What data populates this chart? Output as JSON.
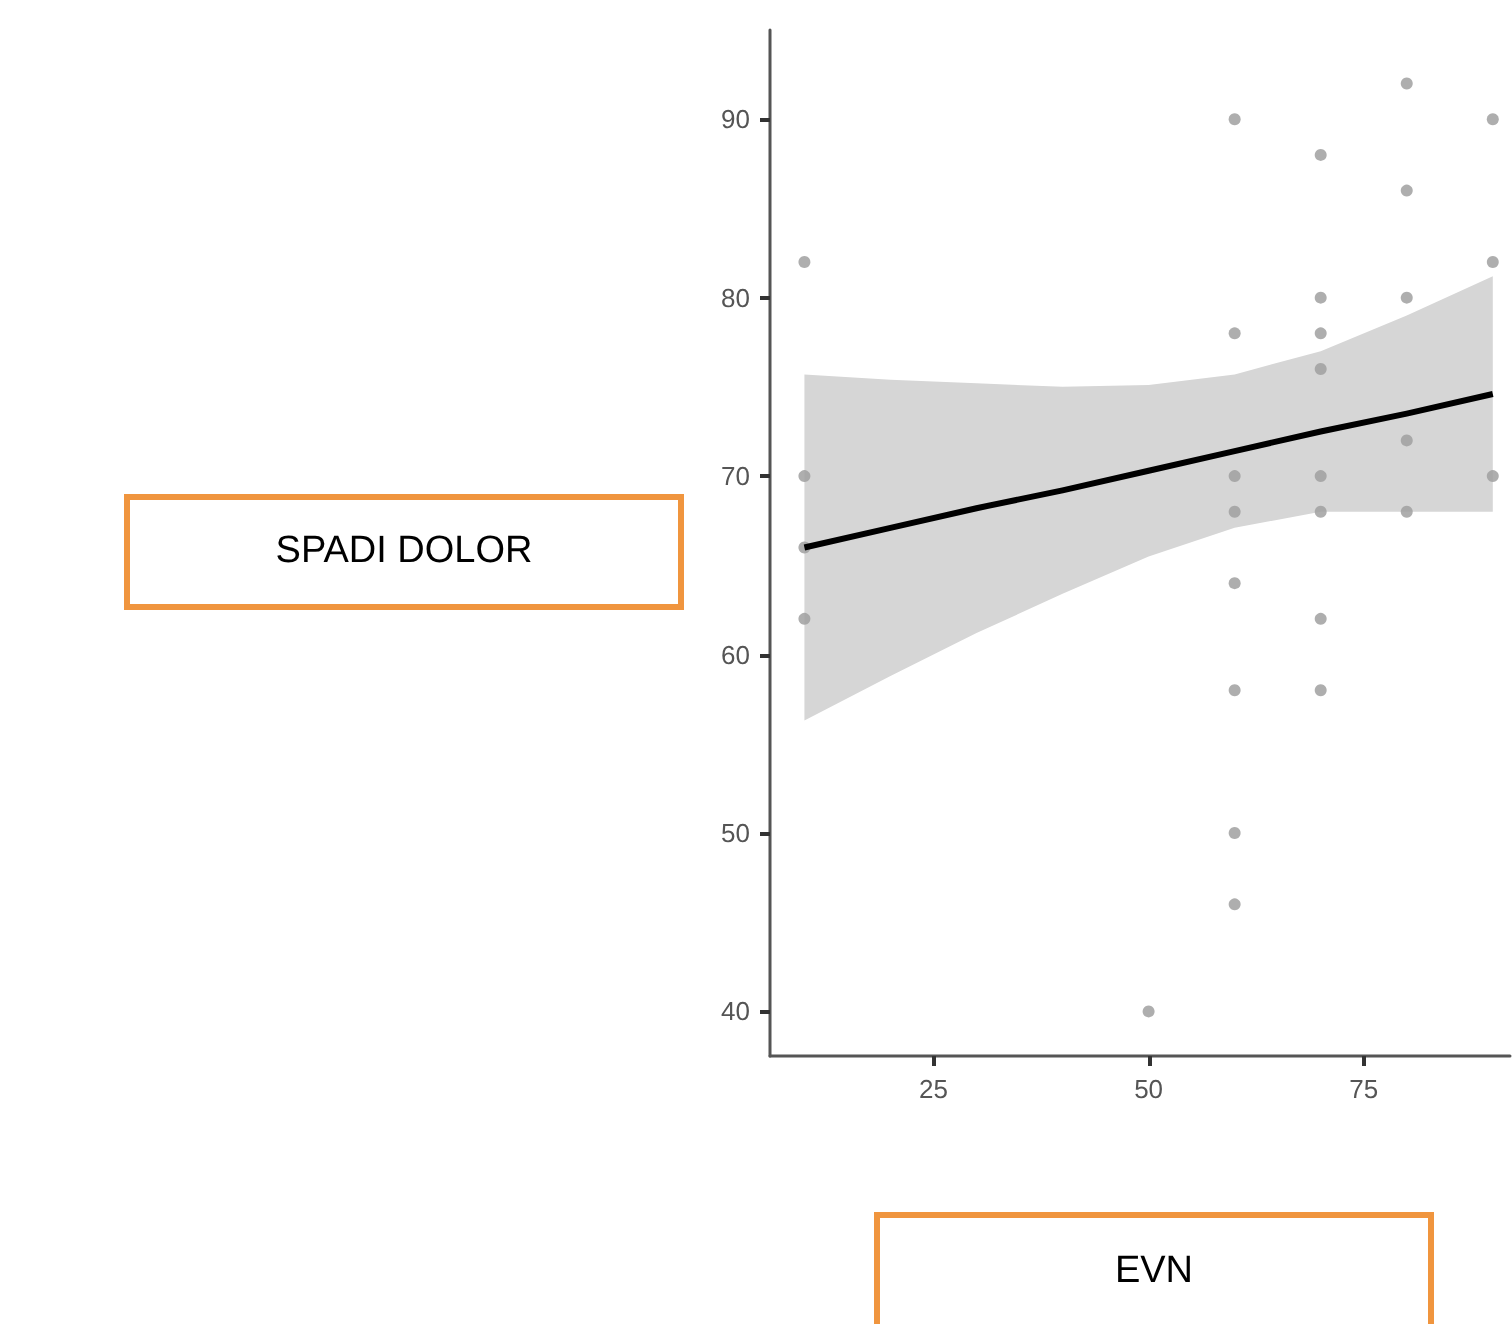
{
  "chart_data": {
    "type": "scatter",
    "xlabel": "EVN",
    "ylabel": "SPADI DOLOR",
    "xlim": [
      6,
      92
    ],
    "xticks": [
      25,
      50,
      75
    ],
    "ylim": [
      37.5,
      95
    ],
    "yticks": [
      40,
      50,
      60,
      70,
      80,
      90
    ],
    "grid": false,
    "marker": "circle",
    "series": [
      {
        "color": "#a0a0a0",
        "x": [
          10,
          10,
          10,
          10,
          50,
          60,
          60,
          60,
          60,
          60,
          60,
          60,
          60,
          70,
          70,
          70,
          70,
          70,
          70,
          70,
          70,
          80,
          80,
          80,
          80,
          80,
          90,
          90,
          90
        ],
        "values": [
          82,
          70,
          66,
          62,
          40,
          90,
          78,
          70,
          68,
          64,
          58,
          50,
          46,
          88,
          80,
          78,
          76,
          70,
          68,
          62,
          58,
          92,
          86,
          80,
          72,
          68,
          90,
          82,
          70
        ]
      },
      {
        "type": "line",
        "marker": "none",
        "color": "#000000",
        "x": [
          10,
          20,
          30,
          40,
          50,
          60,
          70,
          80,
          90
        ],
        "values": [
          66,
          67.1,
          68.2,
          69.2,
          70.3,
          71.4,
          72.5,
          73.5,
          74.6
        ],
        "lower": [
          56.3,
          58.8,
          61.2,
          63.4,
          65.5,
          67.1,
          68,
          68,
          68
        ],
        "upper": [
          75.7,
          75.4,
          75.2,
          75,
          75.1,
          75.7,
          77,
          79,
          81.2
        ]
      }
    ]
  }
}
